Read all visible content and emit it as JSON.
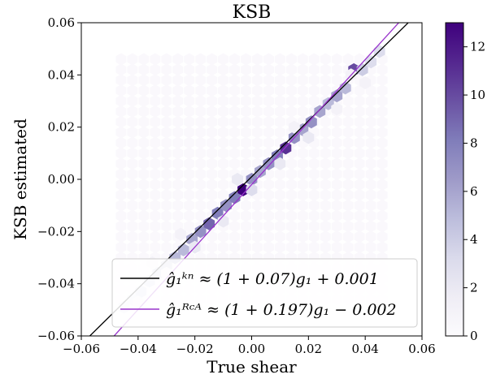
{
  "chart_data": {
    "type": "heatmap",
    "title": "KSB",
    "xlabel": "True shear",
    "ylabel": "KSB estimated",
    "xlim": [
      -0.06,
      0.06
    ],
    "ylim": [
      -0.06,
      0.06
    ],
    "xticks": [
      "−0.06",
      "−0.04",
      "−0.02",
      "0.00",
      "0.02",
      "0.04",
      "0.06"
    ],
    "yticks": [
      "−0.06",
      "−0.04",
      "−0.02",
      "0.00",
      "0.02",
      "0.04",
      "0.06"
    ],
    "tick_values": [
      -0.06,
      -0.04,
      -0.02,
      0.0,
      0.02,
      0.04,
      0.06
    ],
    "grid": false,
    "legend_position": "lower-right",
    "colormap": "Purples",
    "colorbar": {
      "min": 0,
      "max": 13,
      "ticks": [
        "0",
        "2",
        "4",
        "6",
        "8",
        "10",
        "12"
      ],
      "tick_values": [
        0,
        2,
        4,
        6,
        8,
        10,
        12
      ],
      "colors": [
        "#fcfbfd",
        "#efedf5",
        "#dadaeb",
        "#bcbddc",
        "#9e9ac8",
        "#807dba",
        "#6a51a3",
        "#54278f",
        "#3f007d"
      ]
    },
    "hexbins": [
      {
        "x": -0.045,
        "y": -0.049,
        "count": 2
      },
      {
        "x": -0.042,
        "y": -0.046,
        "count": 2
      },
      {
        "x": -0.039,
        "y": -0.043,
        "count": 3
      },
      {
        "x": -0.036,
        "y": -0.039,
        "count": 3
      },
      {
        "x": -0.033,
        "y": -0.036,
        "count": 4
      },
      {
        "x": -0.03,
        "y": -0.033,
        "count": 4
      },
      {
        "x": -0.027,
        "y": -0.03,
        "count": 5
      },
      {
        "x": -0.024,
        "y": -0.027,
        "count": 5
      },
      {
        "x": -0.021,
        "y": -0.023,
        "count": 6
      },
      {
        "x": -0.018,
        "y": -0.02,
        "count": 7
      },
      {
        "x": -0.015,
        "y": -0.017,
        "count": 9
      },
      {
        "x": -0.012,
        "y": -0.013,
        "count": 8
      },
      {
        "x": -0.009,
        "y": -0.01,
        "count": 7
      },
      {
        "x": -0.006,
        "y": -0.007,
        "count": 8
      },
      {
        "x": -0.003,
        "y": -0.004,
        "count": 13
      },
      {
        "x": 0.0,
        "y": 0.0,
        "count": 7
      },
      {
        "x": 0.003,
        "y": 0.003,
        "count": 6
      },
      {
        "x": 0.006,
        "y": 0.006,
        "count": 7
      },
      {
        "x": 0.009,
        "y": 0.009,
        "count": 8
      },
      {
        "x": 0.012,
        "y": 0.012,
        "count": 11
      },
      {
        "x": 0.015,
        "y": 0.016,
        "count": 7
      },
      {
        "x": 0.018,
        "y": 0.019,
        "count": 6
      },
      {
        "x": 0.021,
        "y": 0.022,
        "count": 7
      },
      {
        "x": 0.024,
        "y": 0.026,
        "count": 6
      },
      {
        "x": 0.027,
        "y": 0.029,
        "count": 5
      },
      {
        "x": 0.03,
        "y": 0.032,
        "count": 6
      },
      {
        "x": 0.033,
        "y": 0.035,
        "count": 5
      },
      {
        "x": 0.036,
        "y": 0.042,
        "count": 10
      },
      {
        "x": 0.039,
        "y": 0.042,
        "count": 4
      },
      {
        "x": 0.042,
        "y": 0.045,
        "count": 3
      },
      {
        "x": 0.045,
        "y": 0.049,
        "count": 3
      },
      {
        "x": -0.04,
        "y": -0.047,
        "count": 1
      },
      {
        "x": -0.03,
        "y": -0.036,
        "count": 1
      },
      {
        "x": -0.02,
        "y": -0.026,
        "count": 2
      },
      {
        "x": -0.01,
        "y": -0.016,
        "count": 2
      },
      {
        "x": 0.0,
        "y": -0.004,
        "count": 3
      },
      {
        "x": 0.01,
        "y": 0.006,
        "count": 2
      },
      {
        "x": 0.02,
        "y": 0.016,
        "count": 2
      },
      {
        "x": 0.03,
        "y": 0.027,
        "count": 1
      },
      {
        "x": 0.04,
        "y": 0.037,
        "count": 1
      },
      {
        "x": -0.035,
        "y": -0.032,
        "count": 1
      },
      {
        "x": -0.025,
        "y": -0.021,
        "count": 1
      },
      {
        "x": -0.005,
        "y": 0.0,
        "count": 2
      },
      {
        "x": 0.015,
        "y": 0.02,
        "count": 1
      },
      {
        "x": 0.035,
        "y": 0.04,
        "count": 1
      }
    ],
    "background_hexbins_range": {
      "x": [
        -0.046,
        0.046
      ],
      "y": [
        -0.046,
        0.046
      ],
      "count": 0.3
    },
    "fit_lines": [
      {
        "label": "ĝ₁ᵏⁿ ≈ (1 + 0.07)g₁ + 0.001",
        "slope": 1.07,
        "intercept": 0.001,
        "color": "#000000"
      },
      {
        "label": "ĝ₁ᴿᶜᴬ ≈ (1 + 0.197)g₁ − 0.002",
        "slope": 1.197,
        "intercept": -0.002,
        "color": "#9933cc"
      }
    ]
  }
}
